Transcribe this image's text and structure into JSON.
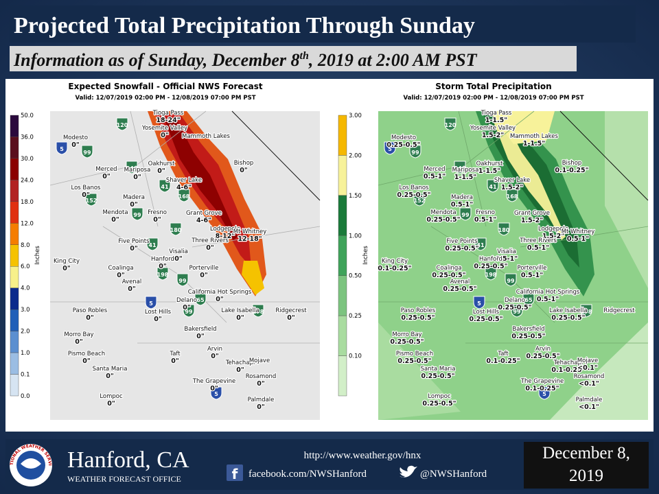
{
  "header": {
    "title": "Projected Total Precipitation Through Sunday",
    "subtitle": [
      "Information as of  Sunday, December 8",
      "th",
      ", 2019 at  2:00 AM PST"
    ]
  },
  "places": [
    "Modesto",
    "Tioga Pass",
    "Yosemite Valley",
    "Mammoth Lakes",
    "Mariposa",
    "Merced",
    "Oakhurst",
    "Bishop",
    "Los Banos",
    "Shaver Lake",
    "Madera",
    "Mendota",
    "Fresno",
    "Grant Grove",
    "Lodgepole",
    "Mt Whitney",
    "Five Points",
    "Three Rivers",
    "Visalia",
    "King City",
    "Coalinga",
    "Hanford",
    "Porterville",
    "Avenal",
    "California Hot Springs",
    "Delano",
    "Paso Robles",
    "Lost Hills",
    "Lake Isabella",
    "Ridgecrest",
    "Bakersfield",
    "Morro Bay",
    "Pismo Beach",
    "Taft",
    "Arvin",
    "Tehachapi",
    "Mojave",
    "Santa Maria",
    "Rosamond",
    "The Grapevine",
    "Lompoc",
    "Palmdale"
  ],
  "routes": [
    120,
    5,
    99,
    140,
    41,
    168,
    152,
    99,
    180,
    41,
    198,
    99,
    5,
    65,
    178,
    99,
    5
  ],
  "panels": [
    {
      "title": "Expected Snowfall - Official NWS Forecast",
      "valid": "Valid: 12/07/2019 02:00 PM - 12/08/2019 07:00 PM PST",
      "legend_unit": "Inches",
      "legend_ticks": [
        "50.0",
        "36.0",
        "30.0",
        "24.0",
        "18.0",
        "12.0",
        "8.0",
        "6.0",
        "4.0",
        "3.0",
        "2.0",
        "1.0",
        "0.1",
        "0.0"
      ],
      "legend_colors": [
        "#2b0a3d",
        "#5a0f1e",
        "#8b0000",
        "#b22222",
        "#e03010",
        "#f57d00",
        "#f5c200",
        "#f7f08a",
        "#0b2a8c",
        "#1f5fb8",
        "#5b8fd0",
        "#9bbde3",
        "#d6e4f2"
      ],
      "amounts": [
        "0\"",
        "18-24\"",
        "0\"",
        null,
        "0\"",
        "0\"",
        "0\"",
        "0\"",
        "0\"",
        "4-6\"",
        "0\"",
        "0\"",
        "0\"",
        "4-6\"",
        "8-12\"",
        "12-18\"",
        "0\"",
        "0\"",
        "0\"",
        "0\"",
        "0\"",
        "0\"",
        "0\"",
        "0\"",
        "0\"",
        "0\"",
        "0\"",
        "0\"",
        "0\"",
        "0\"",
        "0\"",
        "0\"",
        "0\"",
        "0\"",
        "0\"",
        "0\"",
        null,
        "0\"",
        "0\"",
        "0\"",
        "0\"",
        "0\""
      ]
    },
    {
      "title": "Storm Total Precipitation",
      "valid": "Valid: 12/07/2019 02:00 PM - 12/08/2019 07:00 PM PST",
      "legend_unit": "Inches",
      "legend_ticks": [
        "3.00",
        "2.00",
        "1.50",
        "1.00",
        "0.50",
        "0.25",
        "0.10"
      ],
      "legend_colors": [
        "#f5b800",
        "#f7f29a",
        "#1a7a3a",
        "#3fa35a",
        "#7cc47f",
        "#a9dca0",
        "#d2efc8"
      ],
      "amounts": [
        "0.25-0.5\"",
        "1-1.5\"",
        "1.5-2\"",
        "1-1.5\"",
        "1-1.5\"",
        "0.5-1\"",
        "1-1.5\"",
        "0.1-0.25\"",
        "0.25-0.5\"",
        "1.5-2\"",
        "0.5-1\"",
        "0.25-0.5\"",
        "0.5-1\"",
        "1.5-2\"",
        "1.5-2\"",
        "0.5-1\"",
        "0.25-0.5\"",
        "0.5-1\"",
        "0.5-1\"",
        "0.1-0.25\"",
        "0.25-0.5\"",
        "0.25-0.5\"",
        "0.5-1\"",
        "0.25-0.5\"",
        "0.5-1\"",
        "0.25-0.5\"",
        "0.25-0.5\"",
        "0.25-0.5\"",
        "0.25-0.5\"",
        null,
        "0.25-0.5\"",
        "0.25-0.5\"",
        "0.25-0.5\"",
        "0.1-0.25\"",
        "0.25-0.5\"",
        "0.1-0.25\"",
        "<0.1\"",
        "0.25-0.5\"",
        "<0.1\"",
        "0.1-0.25\"",
        "0.25-0.5\"",
        "<0.1\""
      ]
    }
  ],
  "footer": {
    "logo": "NATIONAL WEATHER SERVICE",
    "office": "Hanford, CA",
    "office_sub": "WEATHER FORECAST OFFICE",
    "url": "http://www.weather.gov/hnx",
    "facebook": "facebook.com/NWSHanford",
    "twitter": "@NWSHanford",
    "date": "December 8, 2019"
  }
}
